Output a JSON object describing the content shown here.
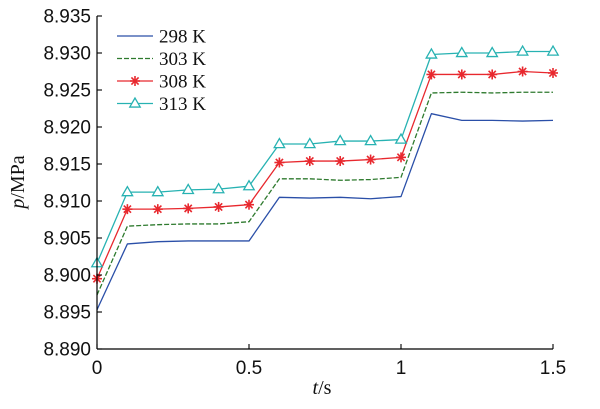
{
  "chart_data": {
    "type": "line",
    "title": "",
    "xlabel": {
      "var": "t",
      "unit": "/s"
    },
    "ylabel": {
      "var": "p",
      "unit": "/MPa"
    },
    "xlim": [
      0,
      1.5
    ],
    "ylim": [
      8.89,
      8.935
    ],
    "xticks": [
      0,
      0.5,
      1,
      1.5
    ],
    "xtick_labels": [
      "0",
      "0.5",
      "1",
      "1.5"
    ],
    "yticks": [
      8.89,
      8.895,
      8.9,
      8.905,
      8.91,
      8.915,
      8.92,
      8.925,
      8.93,
      8.935
    ],
    "ytick_labels": [
      "8.890",
      "8.895",
      "8.900",
      "8.905",
      "8.910",
      "8.915",
      "8.920",
      "8.925",
      "8.930",
      "8.935"
    ],
    "grid": false,
    "legend_position": "top-left",
    "x": [
      0,
      0.1,
      0.2,
      0.3,
      0.4,
      0.5,
      0.6,
      0.7,
      0.8,
      0.9,
      1.0,
      1.1,
      1.2,
      1.3,
      1.4,
      1.5
    ],
    "series": [
      {
        "name": "298 K",
        "color": "#2a4fa8",
        "dash": "solid",
        "marker": "none",
        "values": [
          8.8953,
          8.9042,
          8.9045,
          8.9046,
          8.9046,
          8.9046,
          8.9105,
          8.9104,
          8.9105,
          8.9103,
          8.9106,
          8.9218,
          8.9209,
          8.9209,
          8.9208,
          8.9209
        ]
      },
      {
        "name": "303 K",
        "color": "#2e7a2e",
        "dash": "dashed",
        "marker": "none",
        "values": [
          8.8973,
          8.9066,
          8.9068,
          8.9069,
          8.9069,
          8.9072,
          8.913,
          8.913,
          8.9128,
          8.9129,
          8.9132,
          8.9246,
          8.9247,
          8.9246,
          8.9247,
          8.9247
        ]
      },
      {
        "name": "308 K",
        "color": "#e8282e",
        "dash": "solid",
        "marker": "star",
        "values": [
          8.8995,
          8.9089,
          8.9089,
          8.909,
          8.9092,
          8.9095,
          8.9152,
          8.9154,
          8.9154,
          8.9156,
          8.9159,
          8.9271,
          8.9271,
          8.9271,
          8.9275,
          8.9273
        ]
      },
      {
        "name": "313 K",
        "color": "#27b2b2",
        "dash": "solid",
        "marker": "triangle",
        "values": [
          8.9016,
          8.9112,
          8.9112,
          8.9115,
          8.9116,
          8.912,
          8.9177,
          8.9177,
          8.9181,
          8.9181,
          8.9183,
          8.9298,
          8.93,
          8.93,
          8.9302,
          8.9302
        ]
      }
    ]
  }
}
